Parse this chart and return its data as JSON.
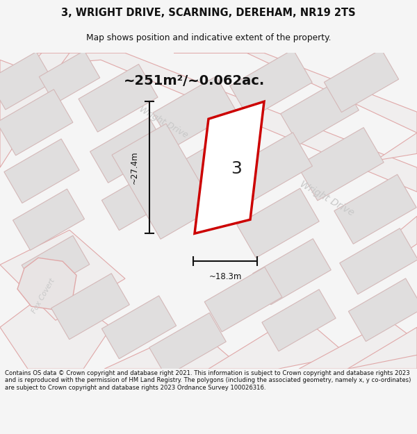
{
  "title_line1": "3, WRIGHT DRIVE, SCARNING, DEREHAM, NR19 2TS",
  "title_line2": "Map shows position and indicative extent of the property.",
  "area_label": "~251m²/~0.062ac.",
  "property_number": "3",
  "dim_height": "~27.4m",
  "dim_width": "~18.3m",
  "footer_text": "Contains OS data © Crown copyright and database right 2021. This information is subject to Crown copyright and database rights 2023 and is reproduced with the permission of HM Land Registry. The polygons (including the associated geometry, namely x, y co-ordinates) are subject to Crown copyright and database rights 2023 Ordnance Survey 100026316.",
  "bg_color": "#f5f5f5",
  "map_bg": "#f0eeee",
  "block_fill": "#e0dede",
  "block_ec": "#d4b8b8",
  "road_line": "#e0a8a8",
  "plot_stroke": "#cc0000",
  "plot_fill": "#ffffff",
  "dim_color": "#111111",
  "road_label_color": "#c8c8c8",
  "footer_color": "#111111",
  "title_color": "#111111"
}
